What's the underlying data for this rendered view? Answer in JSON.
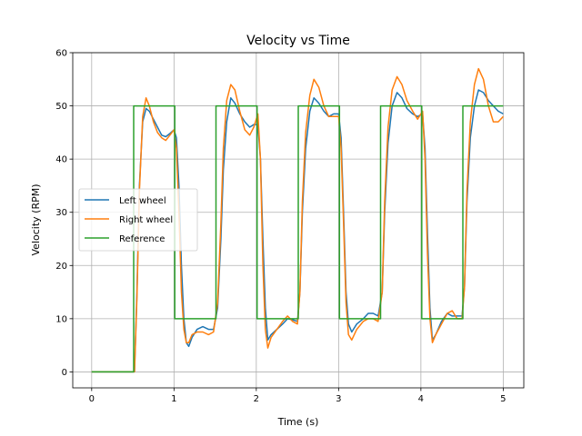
{
  "chart_data": {
    "type": "line",
    "title": "Velocity vs Time",
    "xlabel": "Time (s)",
    "ylabel": "Velocity (RPM)",
    "xlim": [
      -0.23,
      5.25
    ],
    "ylim": [
      -3,
      60
    ],
    "xticks": [
      0,
      1,
      2,
      3,
      4,
      5
    ],
    "yticks": [
      0,
      10,
      20,
      30,
      40,
      50,
      60
    ],
    "grid": true,
    "legend_position": "center-left",
    "series": [
      {
        "name": "Left wheel",
        "color": "#1f77b4",
        "points": [
          [
            0,
            0
          ],
          [
            0.5,
            0
          ],
          [
            0.52,
            0
          ],
          [
            0.55,
            15
          ],
          [
            0.58,
            35
          ],
          [
            0.62,
            47
          ],
          [
            0.66,
            49.5
          ],
          [
            0.7,
            49
          ],
          [
            0.75,
            47.5
          ],
          [
            0.8,
            46
          ],
          [
            0.85,
            44.5
          ],
          [
            0.9,
            44.2
          ],
          [
            0.95,
            44.8
          ],
          [
            1.0,
            45.5
          ],
          [
            1.03,
            44
          ],
          [
            1.06,
            35
          ],
          [
            1.09,
            20
          ],
          [
            1.12,
            10
          ],
          [
            1.15,
            5.5
          ],
          [
            1.18,
            4.8
          ],
          [
            1.22,
            6.5
          ],
          [
            1.28,
            8
          ],
          [
            1.35,
            8.5
          ],
          [
            1.42,
            8
          ],
          [
            1.48,
            8
          ],
          [
            1.53,
            12
          ],
          [
            1.57,
            25
          ],
          [
            1.6,
            38
          ],
          [
            1.64,
            47
          ],
          [
            1.69,
            51.5
          ],
          [
            1.74,
            50.5
          ],
          [
            1.8,
            48.5
          ],
          [
            1.86,
            47
          ],
          [
            1.92,
            46
          ],
          [
            1.97,
            46.5
          ],
          [
            2.02,
            46.5
          ],
          [
            2.05,
            40
          ],
          [
            2.08,
            25
          ],
          [
            2.11,
            12
          ],
          [
            2.14,
            6
          ],
          [
            2.18,
            7
          ],
          [
            2.25,
            8
          ],
          [
            2.32,
            9
          ],
          [
            2.38,
            10
          ],
          [
            2.44,
            9.8
          ],
          [
            2.5,
            9.5
          ],
          [
            2.53,
            15
          ],
          [
            2.56,
            30
          ],
          [
            2.6,
            42
          ],
          [
            2.65,
            49
          ],
          [
            2.7,
            51.5
          ],
          [
            2.76,
            50.5
          ],
          [
            2.82,
            49
          ],
          [
            2.88,
            48
          ],
          [
            2.94,
            48.5
          ],
          [
            3.0,
            48.5
          ],
          [
            3.03,
            44
          ],
          [
            3.06,
            30
          ],
          [
            3.09,
            15
          ],
          [
            3.12,
            9
          ],
          [
            3.16,
            7.5
          ],
          [
            3.22,
            9
          ],
          [
            3.3,
            10
          ],
          [
            3.36,
            11
          ],
          [
            3.42,
            11
          ],
          [
            3.48,
            10.5
          ],
          [
            3.53,
            15
          ],
          [
            3.56,
            30
          ],
          [
            3.6,
            43
          ],
          [
            3.65,
            50
          ],
          [
            3.71,
            52.5
          ],
          [
            3.77,
            51.5
          ],
          [
            3.83,
            49.5
          ],
          [
            3.9,
            48.5
          ],
          [
            3.96,
            48
          ],
          [
            4.02,
            48.5
          ],
          [
            4.05,
            42
          ],
          [
            4.08,
            26
          ],
          [
            4.11,
            12
          ],
          [
            4.14,
            6
          ],
          [
            4.18,
            7
          ],
          [
            4.25,
            9.5
          ],
          [
            4.32,
            11
          ],
          [
            4.38,
            10.5
          ],
          [
            4.44,
            10.5
          ],
          [
            4.5,
            10.5
          ],
          [
            4.53,
            16
          ],
          [
            4.56,
            32
          ],
          [
            4.6,
            44
          ],
          [
            4.65,
            50
          ],
          [
            4.7,
            53
          ],
          [
            4.76,
            52.5
          ],
          [
            4.82,
            51
          ],
          [
            4.88,
            50
          ],
          [
            4.94,
            49
          ],
          [
            5.0,
            48.5
          ]
        ]
      },
      {
        "name": "Right wheel",
        "color": "#ff7f0e",
        "points": [
          [
            0,
            0
          ],
          [
            0.5,
            0
          ],
          [
            0.52,
            0
          ],
          [
            0.55,
            14
          ],
          [
            0.58,
            34
          ],
          [
            0.62,
            48
          ],
          [
            0.66,
            51.5
          ],
          [
            0.7,
            50
          ],
          [
            0.75,
            47
          ],
          [
            0.8,
            45
          ],
          [
            0.85,
            44
          ],
          [
            0.9,
            43.5
          ],
          [
            0.95,
            44.5
          ],
          [
            1.0,
            45.5
          ],
          [
            1.03,
            42
          ],
          [
            1.06,
            30
          ],
          [
            1.09,
            15
          ],
          [
            1.12,
            8
          ],
          [
            1.15,
            5.5
          ],
          [
            1.18,
            5.5
          ],
          [
            1.22,
            7
          ],
          [
            1.28,
            7.5
          ],
          [
            1.35,
            7.5
          ],
          [
            1.42,
            7
          ],
          [
            1.48,
            7.5
          ],
          [
            1.53,
            13
          ],
          [
            1.57,
            28
          ],
          [
            1.6,
            42
          ],
          [
            1.64,
            51
          ],
          [
            1.69,
            54
          ],
          [
            1.74,
            53
          ],
          [
            1.8,
            49
          ],
          [
            1.86,
            45.5
          ],
          [
            1.92,
            44.5
          ],
          [
            1.97,
            46
          ],
          [
            2.02,
            48.5
          ],
          [
            2.05,
            40
          ],
          [
            2.08,
            20
          ],
          [
            2.11,
            8
          ],
          [
            2.14,
            4.5
          ],
          [
            2.18,
            6.5
          ],
          [
            2.25,
            8
          ],
          [
            2.32,
            9.5
          ],
          [
            2.38,
            10.5
          ],
          [
            2.44,
            9.5
          ],
          [
            2.5,
            9
          ],
          [
            2.53,
            15
          ],
          [
            2.56,
            32
          ],
          [
            2.6,
            45
          ],
          [
            2.65,
            52
          ],
          [
            2.7,
            55
          ],
          [
            2.76,
            53.5
          ],
          [
            2.82,
            50
          ],
          [
            2.88,
            48
          ],
          [
            2.94,
            48
          ],
          [
            3.0,
            48
          ],
          [
            3.03,
            42
          ],
          [
            3.06,
            28
          ],
          [
            3.09,
            13
          ],
          [
            3.12,
            7
          ],
          [
            3.16,
            6
          ],
          [
            3.22,
            8
          ],
          [
            3.3,
            9.5
          ],
          [
            3.36,
            10
          ],
          [
            3.42,
            10
          ],
          [
            3.48,
            9.5
          ],
          [
            3.53,
            15
          ],
          [
            3.56,
            32
          ],
          [
            3.6,
            46
          ],
          [
            3.65,
            53
          ],
          [
            3.71,
            55.5
          ],
          [
            3.77,
            54
          ],
          [
            3.83,
            51
          ],
          [
            3.9,
            49
          ],
          [
            3.96,
            47.5
          ],
          [
            4.02,
            49
          ],
          [
            4.05,
            40
          ],
          [
            4.08,
            22
          ],
          [
            4.11,
            10
          ],
          [
            4.14,
            5.5
          ],
          [
            4.18,
            7
          ],
          [
            4.25,
            9
          ],
          [
            4.32,
            11
          ],
          [
            4.38,
            11.5
          ],
          [
            4.44,
            10
          ],
          [
            4.5,
            10
          ],
          [
            4.53,
            16
          ],
          [
            4.56,
            34
          ],
          [
            4.6,
            47
          ],
          [
            4.65,
            54
          ],
          [
            4.7,
            57
          ],
          [
            4.76,
            55
          ],
          [
            4.82,
            50
          ],
          [
            4.88,
            47
          ],
          [
            4.94,
            47
          ],
          [
            5.0,
            48
          ]
        ]
      },
      {
        "name": "Reference",
        "color": "#2ca02c",
        "points": [
          [
            0,
            0
          ],
          [
            0.51,
            0
          ],
          [
            0.51,
            50
          ],
          [
            1.01,
            50
          ],
          [
            1.01,
            10
          ],
          [
            1.51,
            10
          ],
          [
            1.51,
            50
          ],
          [
            2.01,
            50
          ],
          [
            2.01,
            10
          ],
          [
            2.51,
            10
          ],
          [
            2.51,
            50
          ],
          [
            3.01,
            50
          ],
          [
            3.01,
            10
          ],
          [
            3.51,
            10
          ],
          [
            3.51,
            50
          ],
          [
            4.01,
            50
          ],
          [
            4.01,
            10
          ],
          [
            4.51,
            10
          ],
          [
            4.51,
            50
          ],
          [
            5.0,
            50
          ]
        ]
      }
    ]
  }
}
